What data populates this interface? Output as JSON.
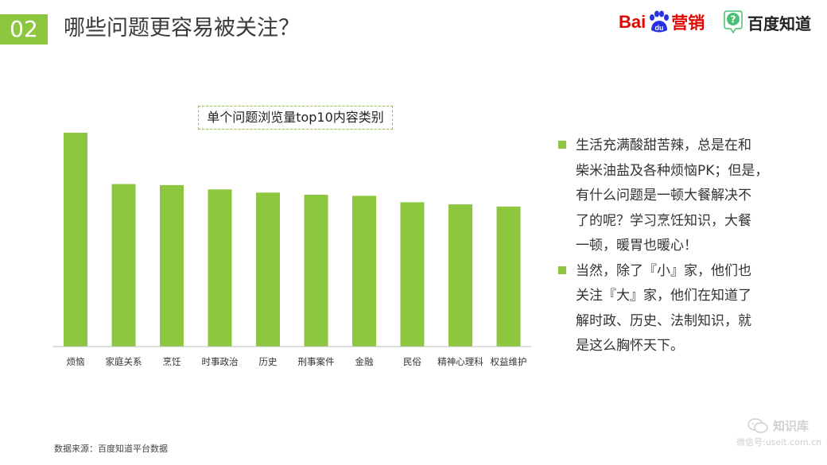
{
  "header": {
    "section_number": "02",
    "title": "哪些问题更容易被关注？"
  },
  "logos": {
    "baidu_text": "Bai",
    "baidu_paw_text": "du",
    "baidu_marketing": "营销",
    "zhidao_icon_text": "?",
    "zhidao_text": "百度知道"
  },
  "chart_data": {
    "type": "bar",
    "title": "单个问题浏览量top10内容类别",
    "categories": [
      "烦恼",
      "家庭关系",
      "烹饪",
      "时事政治",
      "历史",
      "刑事案件",
      "金融",
      "民俗",
      "精神心理科",
      "权益维护"
    ],
    "values": [
      100,
      76,
      75.5,
      73.5,
      72,
      71,
      70.5,
      67.5,
      66.5,
      65.5
    ],
    "ylim": [
      0,
      100
    ],
    "xlabel": "",
    "ylabel": "",
    "grid": false,
    "legend": "none",
    "bar_color": "#8dc63f"
  },
  "bullets": [
    {
      "text": "生活充满酸甜苦辣，总是在和柴米油盐及各种烦恼PK；但是，有什么问题是一顿大餐解决不了的呢？学习烹饪知识，大餐一顿，暖胃也暖心！"
    },
    {
      "text": "当然，除了『小』家，他们也关注『大』家，他们在知道了解时政、历史、法制知识，就是这么胸怀天下。"
    }
  ],
  "bullet_lines": [
    [
      "生活充满酸甜苦辣，总是在和",
      "柴米油盐及各种烦恼PK；但是，",
      "有什么问题是一顿大餐解决不",
      "了的呢？学习烹饪知识，大餐",
      "一顿，暖胃也暖心！"
    ],
    [
      "当然，除了『小』家，他们也",
      "关注『大』家，他们在知道了",
      "解时政、历史、法制知识，就",
      "是这么胸怀天下。"
    ]
  ],
  "source": "数据来源：百度知道平台数据",
  "watermark": {
    "name": "知识库",
    "sub": "微信号:useit.com.cn"
  },
  "colors": {
    "accent": "#8dc63f",
    "baidu_red": "#e10602",
    "baidu_blue": "#2932e1"
  }
}
